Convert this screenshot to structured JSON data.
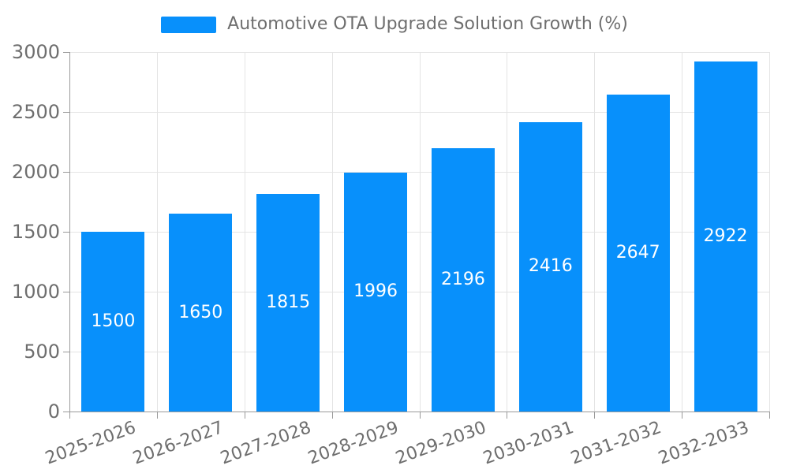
{
  "legend": {
    "label": "Automotive OTA Upgrade Solution Growth (%)"
  },
  "colors": {
    "bar": "#0890FB",
    "grid": "#e4e4e4",
    "axis": "#9a9a9a",
    "tick_text": "#6e6e6e",
    "value_label_text": "#ffffff",
    "background": "#ffffff"
  },
  "chart_data": {
    "type": "bar",
    "title": "Automotive OTA Upgrade Solution Growth (%)",
    "categories": [
      "2025-2026",
      "2026-2027",
      "2027-2028",
      "2028-2029",
      "2029-2030",
      "2030-2031",
      "2031-2032",
      "2032-2033"
    ],
    "values": [
      1500,
      1650,
      1815,
      1996,
      2196,
      2416,
      2647,
      2922
    ],
    "xlabel": "",
    "ylabel": "",
    "ylim": [
      0,
      3000
    ],
    "yticks": [
      0,
      500,
      1000,
      1500,
      2000,
      2500,
      3000
    ],
    "grid": true,
    "legend_position": "top-center",
    "bar_labels": "inside-center",
    "x_tick_rotation_deg": -20
  }
}
